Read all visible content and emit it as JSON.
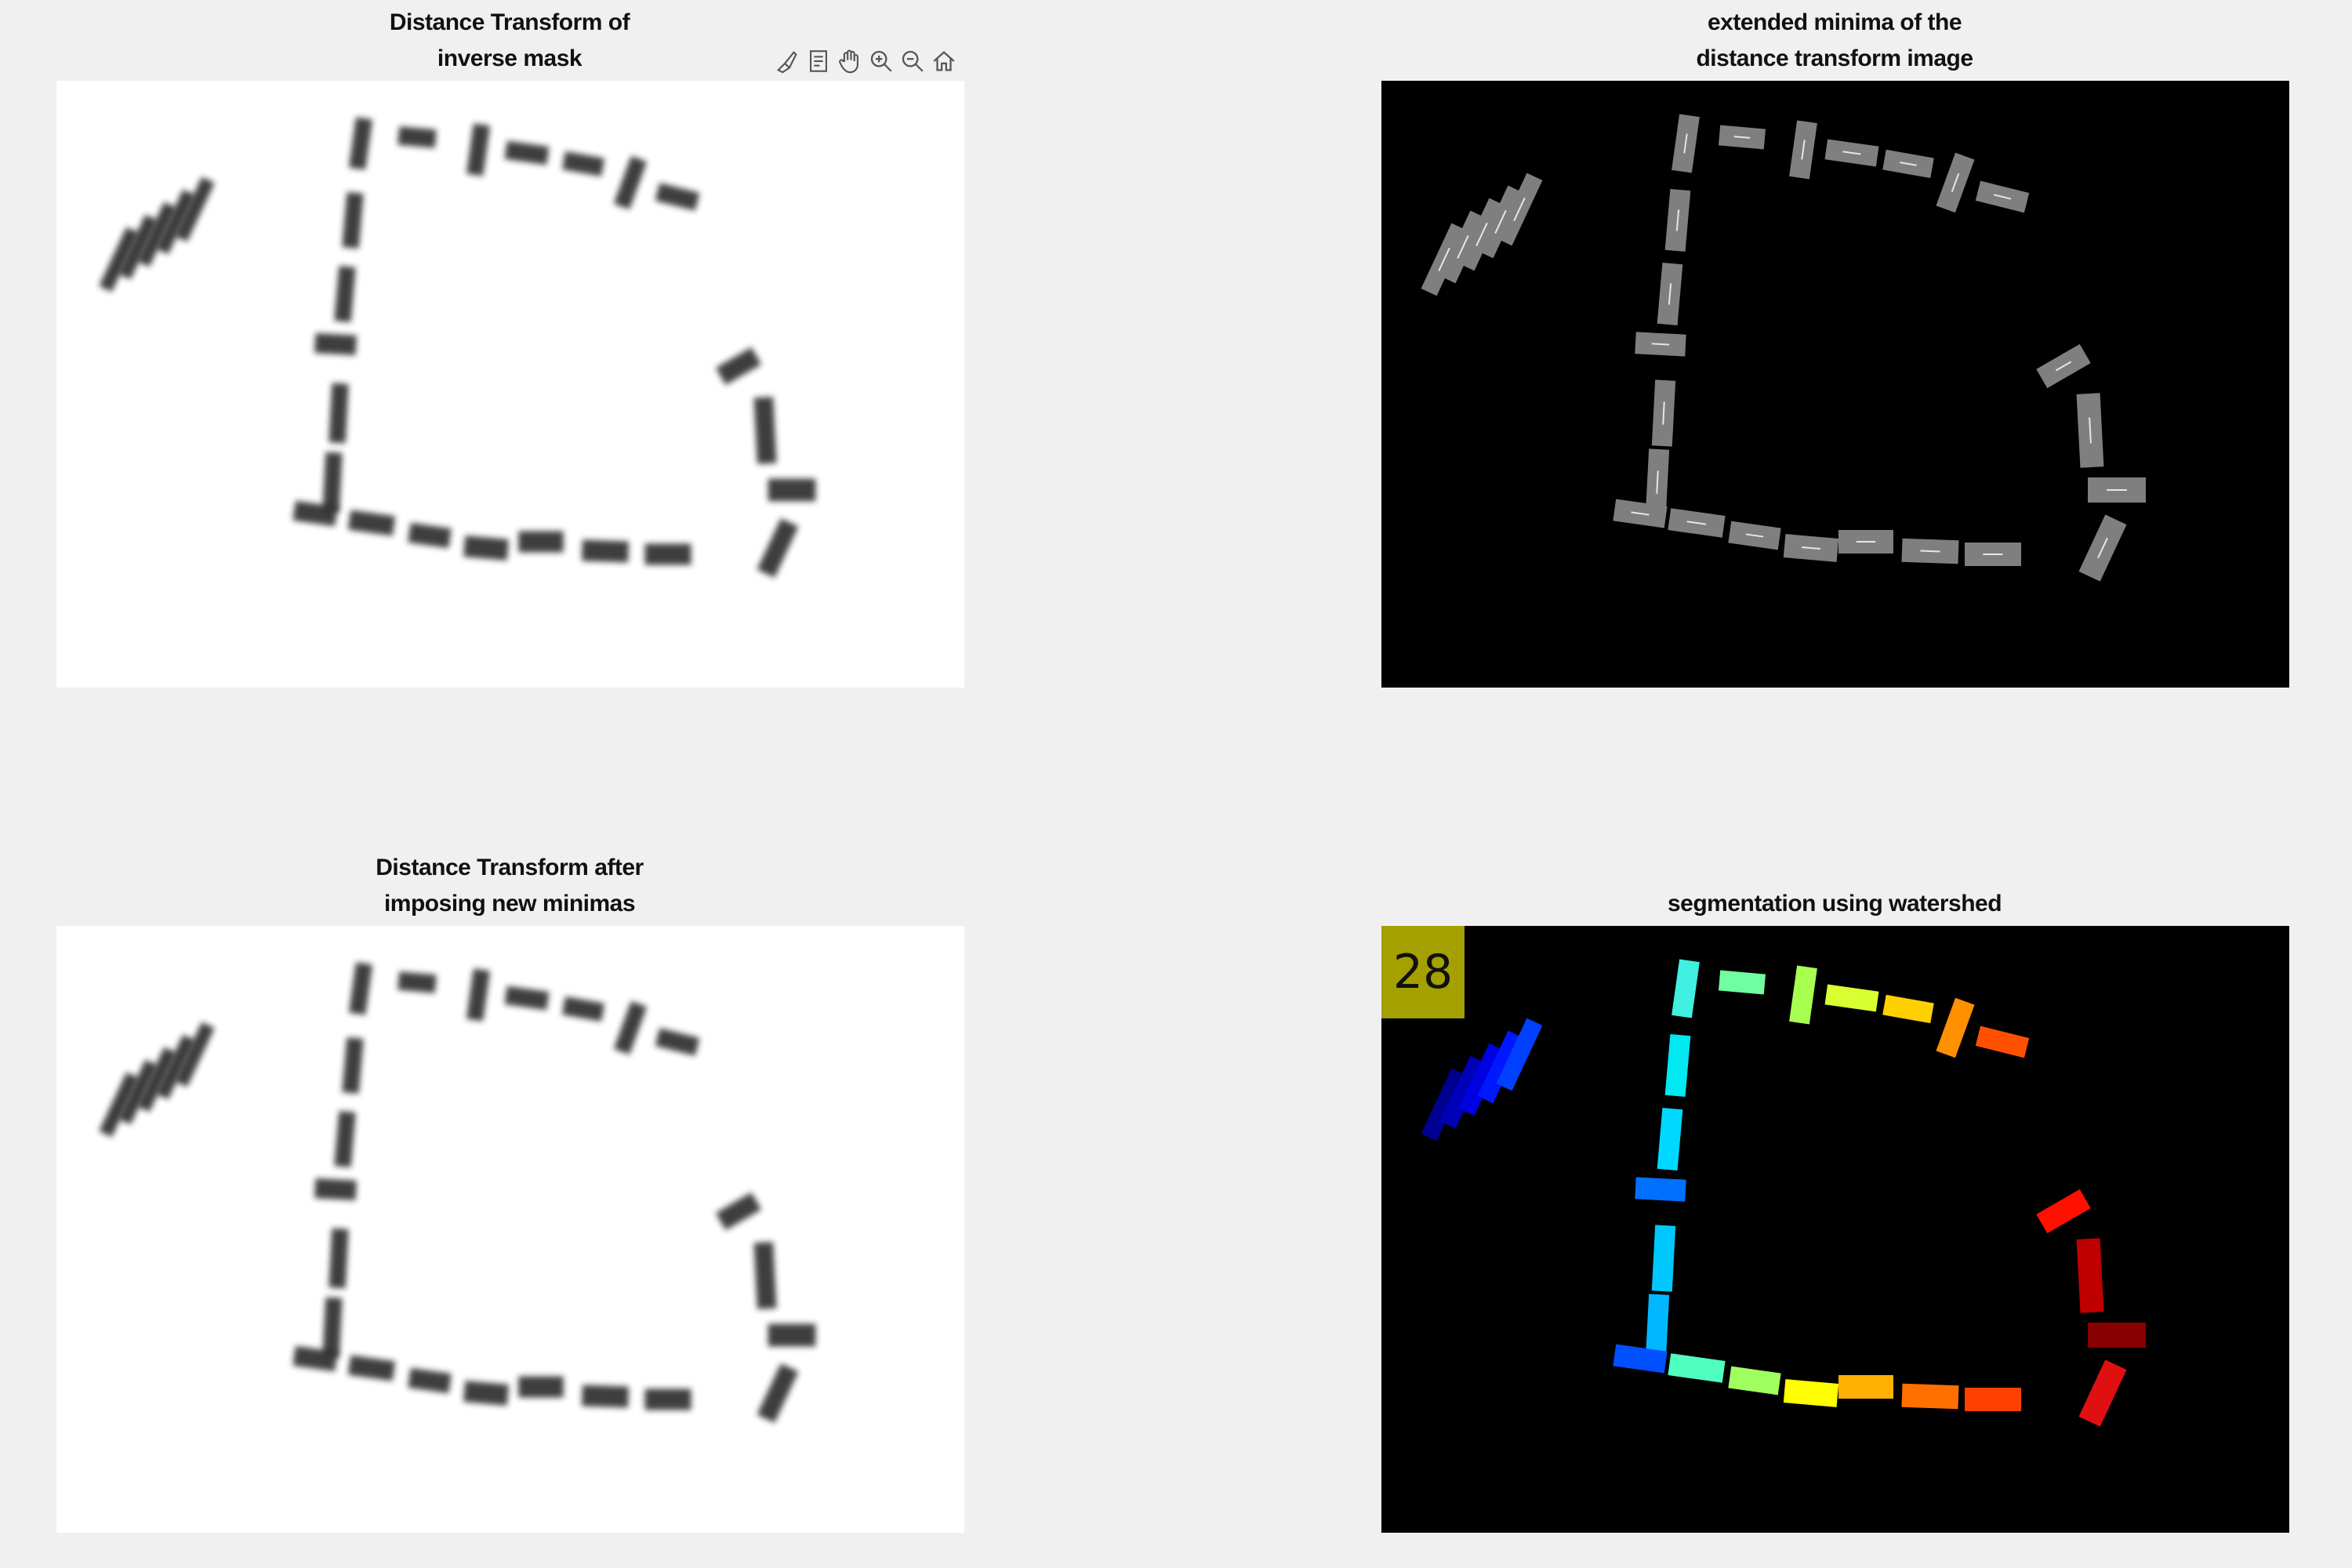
{
  "panels": [
    {
      "id": "dt_inverse",
      "title_lines": [
        "Distance Transform of",
        "inverse mask"
      ]
    },
    {
      "id": "extended_minima",
      "title_lines": [
        "extended minima of the",
        "distance transform image"
      ]
    },
    {
      "id": "dt_imposed",
      "title_lines": [
        "Distance Transform after",
        "imposing new minimas"
      ]
    },
    {
      "id": "watershed",
      "title_lines": [
        "segmentation using watershed"
      ]
    }
  ],
  "toolbar": {
    "items": [
      {
        "name": "brush-icon"
      },
      {
        "name": "data-tip-icon"
      },
      {
        "name": "pan-hand-icon"
      },
      {
        "name": "zoom-in-icon"
      },
      {
        "name": "zoom-out-icon"
      },
      {
        "name": "home-icon"
      }
    ]
  },
  "watershed": {
    "label_count": "28",
    "badge_color": "#a4a000"
  },
  "colors": {
    "figure_bg": "#f0f0f0",
    "dt_bg": "#ffffff",
    "dt_tile": "#2b2b2b",
    "minima_bg": "#000000",
    "minima_tile": "#7f7f7f",
    "minima_line": "#e6e6e6"
  }
}
